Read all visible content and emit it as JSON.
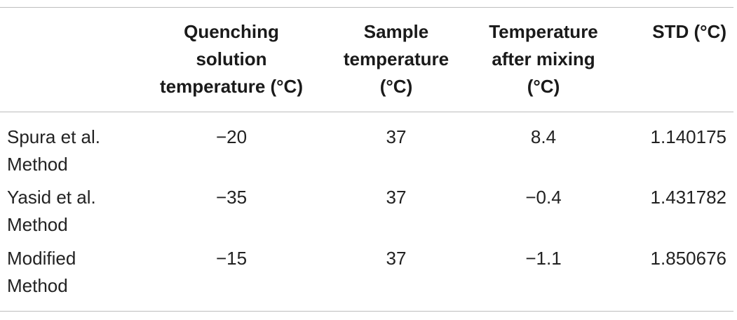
{
  "table": {
    "headers": [
      "",
      "Quenching\nsolution\ntemperature (°C)",
      "Sample\ntemperature\n(°C)",
      "Temperature\nafter mixing\n(°C)",
      "STD (°C)"
    ],
    "rows": [
      {
        "method": "Spura et al.\nMethod",
        "quenching_temp": "−20",
        "sample_temp": "37",
        "after_mixing": "8.4",
        "std": "1.140175"
      },
      {
        "method": "Yasid et al.\nMethod",
        "quenching_temp": "−35",
        "sample_temp": "37",
        "after_mixing": "−0.4",
        "std": "1.431782"
      },
      {
        "method": "Modified\nMethod",
        "quenching_temp": "−15",
        "sample_temp": "37",
        "after_mixing": "−1.1",
        "std": "1.850676"
      }
    ]
  }
}
